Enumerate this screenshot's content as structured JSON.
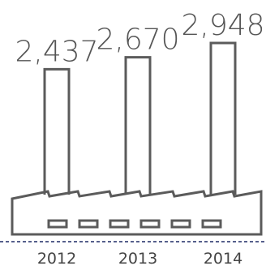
{
  "chart_data": {
    "type": "bar",
    "categories": [
      "2012",
      "2013",
      "2014"
    ],
    "values": [
      2437,
      2670,
      2948
    ],
    "data_labels": [
      "2,437",
      "2,670",
      "2,948"
    ],
    "title": "",
    "xlabel": "",
    "ylabel": "",
    "ylim": [
      0,
      2948
    ],
    "grid": false,
    "legend": "none"
  },
  "colors": {
    "stroke": "#5b5b5b",
    "value_text": "#555555",
    "tick_text": "#444444",
    "baseline": "#1e2a66",
    "background": "#ffffff"
  }
}
